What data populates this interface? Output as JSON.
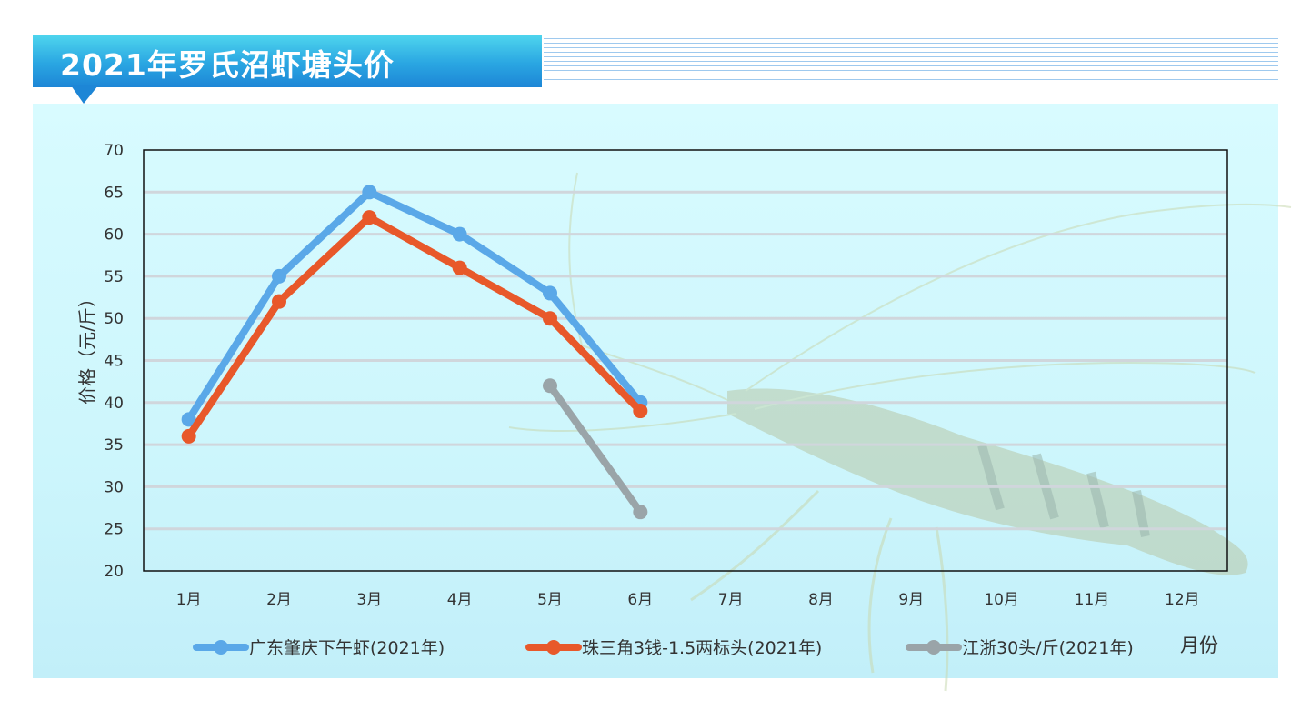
{
  "header": {
    "title": "2021年罗氏沼虾塘头价"
  },
  "chart_data": {
    "type": "line",
    "title": "2021年罗氏沼虾塘头价",
    "ylabel": "价格（元/斤）",
    "xlabel": "月份",
    "categories": [
      "1月",
      "2月",
      "3月",
      "4月",
      "5月",
      "6月",
      "7月",
      "8月",
      "9月",
      "10月",
      "11月",
      "12月"
    ],
    "ylim": [
      20,
      70
    ],
    "yticks": [
      20,
      25,
      30,
      35,
      40,
      45,
      50,
      55,
      60,
      65,
      70
    ],
    "grid": true,
    "legend_position": "bottom",
    "series": [
      {
        "name": "广东肇庆下午虾(2021年)",
        "color": "#5aa8e8",
        "values": [
          38,
          55,
          65,
          60,
          53,
          40,
          null,
          null,
          null,
          null,
          null,
          null
        ]
      },
      {
        "name": "珠三角3钱-1.5两标头(2021年)",
        "color": "#e8582a",
        "values": [
          36,
          52,
          62,
          56,
          50,
          39,
          null,
          null,
          null,
          null,
          null,
          null
        ]
      },
      {
        "name": "江浙30头/斤(2021年)",
        "color": "#9aa4a8",
        "values": [
          null,
          null,
          null,
          null,
          42,
          27,
          null,
          null,
          null,
          null,
          null,
          null
        ]
      }
    ]
  }
}
